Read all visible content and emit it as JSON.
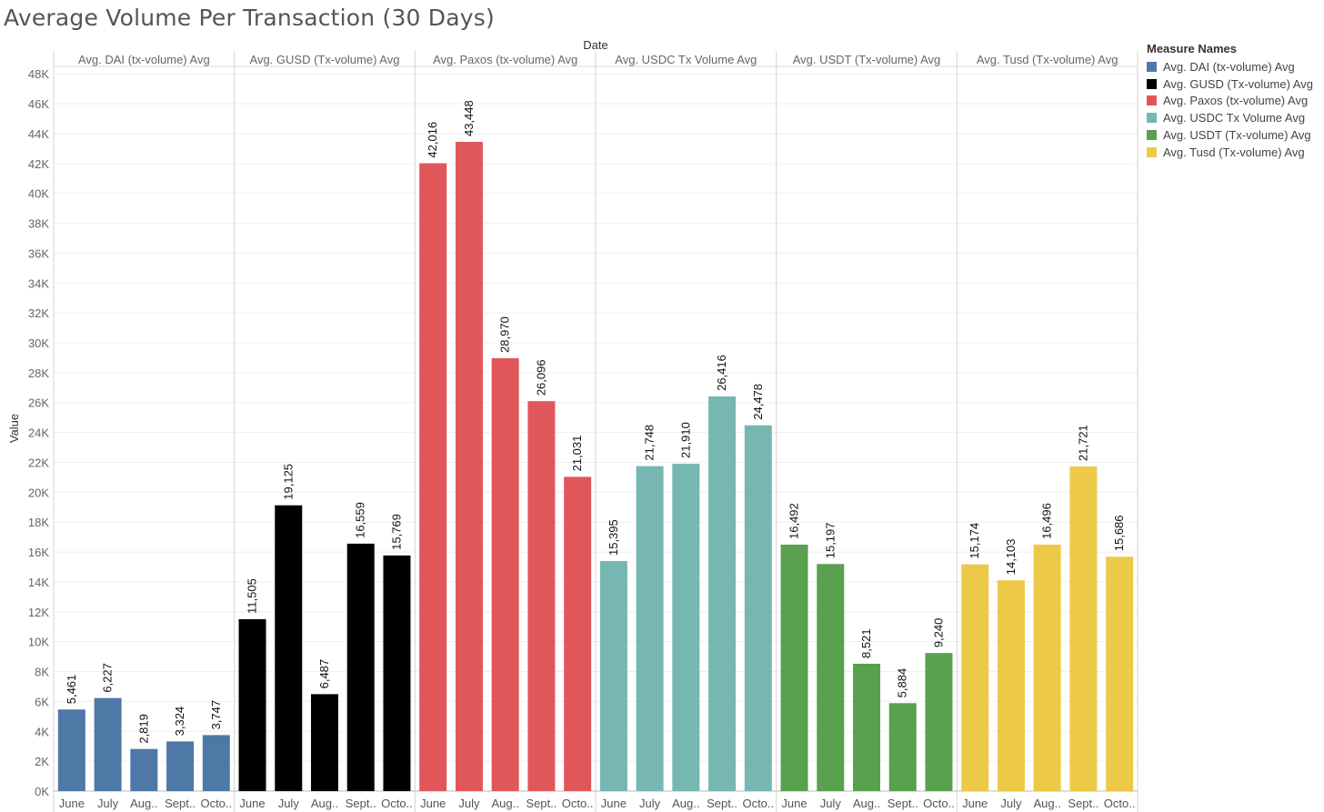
{
  "title": "Average Volume Per Transaction (30 Days)",
  "chart_data": {
    "type": "bar",
    "title": "Average Volume Per Transaction (30 Days)",
    "column_header": "Date",
    "xlabel": "",
    "ylabel": "Value",
    "ylim": [
      0,
      48500
    ],
    "y_ticks": [
      "0K",
      "2K",
      "4K",
      "6K",
      "8K",
      "10K",
      "12K",
      "14K",
      "16K",
      "18K",
      "20K",
      "22K",
      "24K",
      "26K",
      "28K",
      "30K",
      "32K",
      "34K",
      "36K",
      "38K",
      "40K",
      "42K",
      "44K",
      "46K",
      "48K"
    ],
    "y_tick_values": [
      0,
      2000,
      4000,
      6000,
      8000,
      10000,
      12000,
      14000,
      16000,
      18000,
      20000,
      22000,
      24000,
      26000,
      28000,
      30000,
      32000,
      34000,
      36000,
      38000,
      40000,
      42000,
      44000,
      46000,
      48000
    ],
    "grid": true,
    "legend_placement": "right",
    "categories": [
      "June",
      "July",
      "Aug..",
      "Sept..",
      "Octo.."
    ],
    "series": [
      {
        "name": "Avg. DAI (tx-volume) Avg",
        "color": "#4e79a7",
        "values": [
          5461,
          6227,
          2819,
          3324,
          3747
        ],
        "labels": [
          "5,461",
          "6,227",
          "2,819",
          "3,324",
          "3,747"
        ]
      },
      {
        "name": "Avg. GUSD (Tx-volume) Avg",
        "color": "#000000",
        "values": [
          11505,
          19125,
          6487,
          16559,
          15769
        ],
        "labels": [
          "11,505",
          "19,125",
          "6,487",
          "16,559",
          "15,769"
        ]
      },
      {
        "name": "Avg. Paxos (tx-volume) Avg",
        "color": "#e15759",
        "values": [
          42016,
          43448,
          28970,
          26096,
          21031
        ],
        "labels": [
          "42,016",
          "43,448",
          "28,970",
          "26,096",
          "21,031"
        ]
      },
      {
        "name": "Avg. USDC Tx Volume Avg",
        "color": "#76b7b2",
        "values": [
          15395,
          21748,
          21910,
          26416,
          24478
        ],
        "labels": [
          "15,395",
          "21,748",
          "21,910",
          "26,416",
          "24,478"
        ]
      },
      {
        "name": "Avg. USDT (Tx-volume) Avg",
        "color": "#59a14f",
        "values": [
          16492,
          15197,
          8521,
          5884,
          9240
        ],
        "labels": [
          "16,492",
          "15,197",
          "8,521",
          "5,884",
          "9,240"
        ]
      },
      {
        "name": "Avg. Tusd (Tx-volume) Avg",
        "color": "#edc948",
        "values": [
          15174,
          14103,
          16496,
          21721,
          15686
        ],
        "labels": [
          "15,174",
          "14,103",
          "16,496",
          "21,721",
          "15,686"
        ]
      }
    ]
  },
  "legend": {
    "title": "Measure Names",
    "items": [
      {
        "label": "Avg. DAI (tx-volume) Avg",
        "color": "#4e79a7"
      },
      {
        "label": "Avg. GUSD (Tx-volume) Avg",
        "color": "#000000"
      },
      {
        "label": "Avg. Paxos (tx-volume) Avg",
        "color": "#e15759"
      },
      {
        "label": "Avg. USDC Tx Volume Avg",
        "color": "#76b7b2"
      },
      {
        "label": "Avg. USDT (Tx-volume) Avg",
        "color": "#59a14f"
      },
      {
        "label": "Avg. Tusd (Tx-volume) Avg",
        "color": "#edc948"
      }
    ]
  }
}
